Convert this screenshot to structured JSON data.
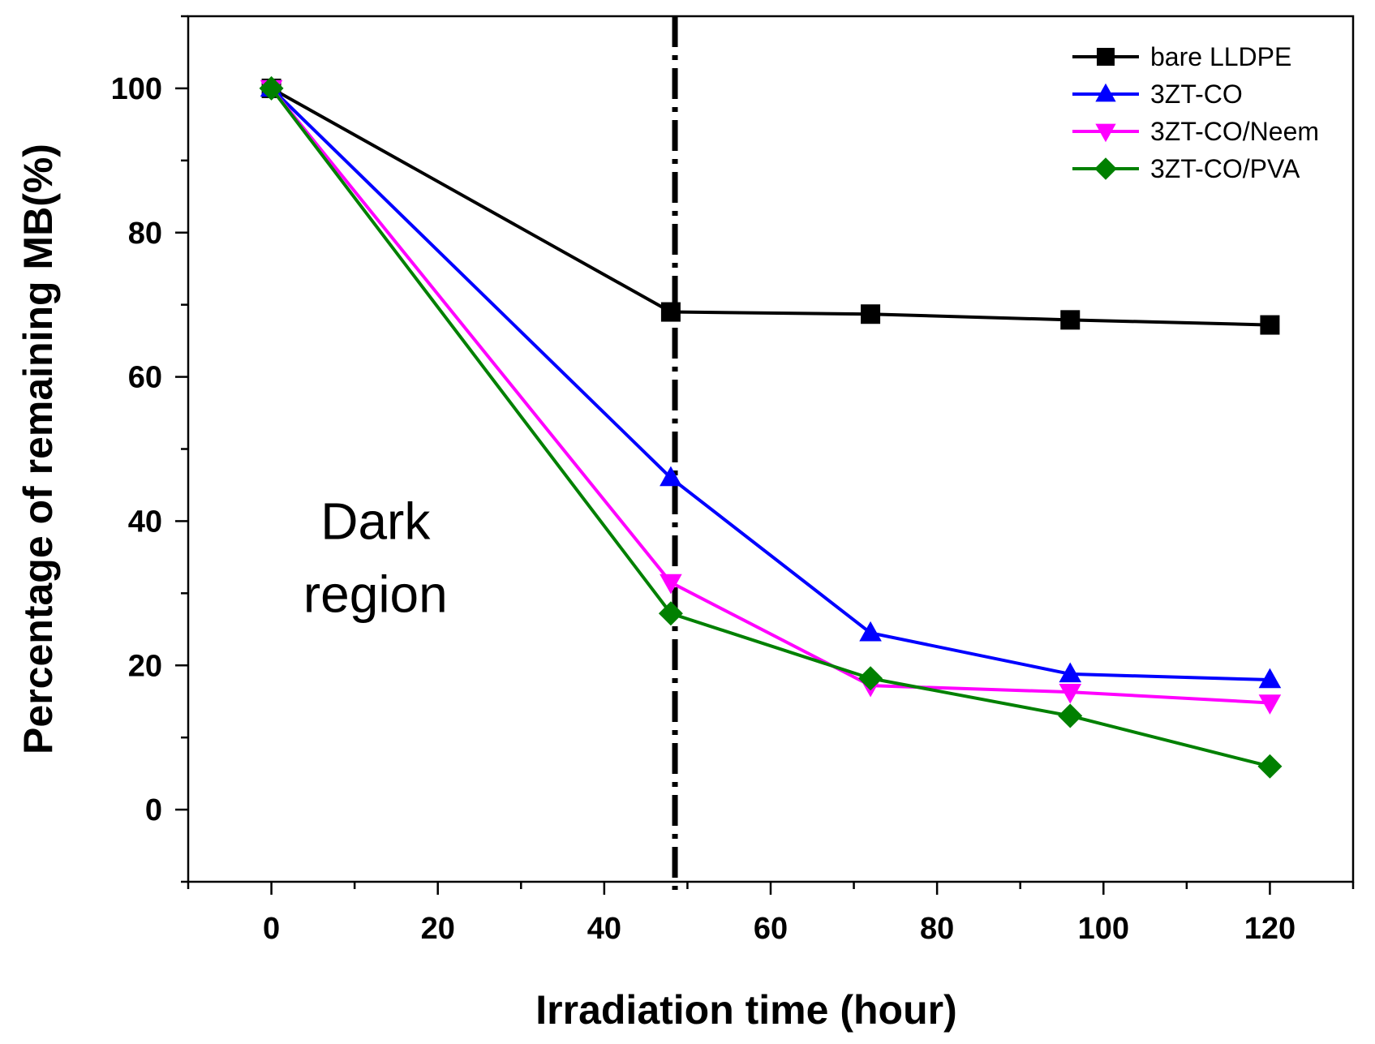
{
  "chart_data": {
    "type": "line",
    "title": "",
    "xlabel": "Irradiation time (hour)",
    "ylabel": "Percentage of remaining MB(%)",
    "xlim": [
      -10,
      130
    ],
    "ylim": [
      -10,
      110
    ],
    "xticks": [
      0,
      20,
      40,
      60,
      80,
      100,
      120
    ],
    "xtick_labels": [
      "0",
      "20",
      "40",
      "60",
      "80",
      "100",
      "120"
    ],
    "yticks": [
      0,
      20,
      40,
      60,
      80,
      100
    ],
    "ytick_labels": [
      "0",
      "20",
      "40",
      "60",
      "80",
      "100"
    ],
    "x": [
      0,
      48,
      72,
      96,
      120
    ],
    "series": [
      {
        "name": "bare LLDPE",
        "color": "#000000",
        "marker": "square",
        "values": [
          100,
          69,
          68.7,
          67.9,
          67.2
        ]
      },
      {
        "name": "3ZT-CO",
        "color": "#0000ff",
        "marker": "triangle-up",
        "values": [
          100,
          46,
          24.5,
          18.8,
          18
        ]
      },
      {
        "name": "3ZT-CO/Neem",
        "color": "#ff00ff",
        "marker": "triangle-down",
        "values": [
          100,
          31.5,
          17.2,
          16.3,
          14.8
        ]
      },
      {
        "name": "3ZT-CO/PVA",
        "color": "#008000",
        "marker": "diamond",
        "values": [
          100,
          27.2,
          18.2,
          13,
          6
        ]
      }
    ],
    "divider": {
      "x": 48.5,
      "style": "dash-dot",
      "color": "#000000"
    },
    "annotation": {
      "lines": [
        "Dark",
        "region"
      ],
      "x": 12.5,
      "y": 40
    },
    "grid": false,
    "legend": {
      "position": "top-right"
    }
  }
}
